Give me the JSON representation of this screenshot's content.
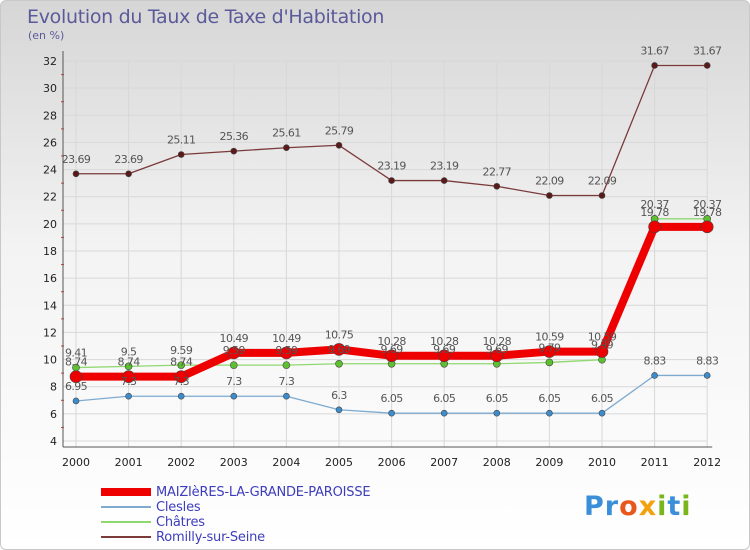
{
  "title": "Evolution du Taux de Taxe d'Habitation",
  "subtitle": "(en %)",
  "logo": {
    "text": "Proxiti",
    "letters": [
      "P",
      "r",
      "o",
      "x",
      "i",
      "t",
      "i"
    ],
    "colors": [
      "#3b8fd9",
      "#3b8fd9",
      "#e8571b",
      "#f2a20c",
      "#79b51c",
      "#3b8fd9",
      "#79b51c"
    ]
  },
  "chart_data": {
    "type": "line",
    "title": "Evolution du Taux de Taxe d'Habitation",
    "ylabel": "(en %)",
    "xlabel": "",
    "ylim": [
      4,
      32
    ],
    "yticks": [
      4,
      6,
      8,
      10,
      12,
      14,
      16,
      18,
      20,
      22,
      24,
      26,
      28,
      30,
      32
    ],
    "x": [
      "2000",
      "2001",
      "2002",
      "2003",
      "2004",
      "2005",
      "2006",
      "2007",
      "2008",
      "2009",
      "2010",
      "2011",
      "2012"
    ],
    "grid": true,
    "series": [
      {
        "name": "Romilly-sur-Seine",
        "color": "#7a3a3a",
        "marker": "#5a1a1a",
        "width": 1.3,
        "r": 3,
        "values": [
          23.69,
          23.69,
          25.11,
          25.36,
          25.61,
          25.79,
          23.19,
          23.19,
          22.77,
          22.09,
          22.09,
          31.67,
          31.67
        ],
        "labels": [
          "23.69",
          "23.69",
          "25.11",
          "25.36",
          "25.61",
          "25.79",
          "23.19",
          "23.19",
          "22.77",
          "22.09",
          "22.09",
          "31.67",
          "31.67"
        ]
      },
      {
        "name": "Châtres",
        "color": "#90d870",
        "marker": "#5cc030",
        "width": 1.3,
        "r": 3.5,
        "values": [
          9.41,
          9.5,
          9.59,
          9.59,
          9.59,
          9.69,
          9.69,
          9.69,
          9.69,
          9.79,
          9.99,
          20.37,
          20.37
        ],
        "labels": [
          "9.41",
          "9.5",
          "9.59",
          "9.59",
          "9.59",
          "9.69",
          "9.69",
          "9.69",
          "9.69",
          "9.79",
          "9.99",
          "20.37",
          "20.37"
        ]
      },
      {
        "name": "Clesles",
        "color": "#7eaad0",
        "marker": "#3d8ccc",
        "width": 1.3,
        "r": 3,
        "values": [
          6.95,
          7.3,
          7.3,
          7.3,
          7.3,
          6.3,
          6.05,
          6.05,
          6.05,
          6.05,
          6.05,
          8.83,
          8.83
        ],
        "labels": [
          "6.95",
          "7.3",
          "7.3",
          "7.3",
          "7.3",
          "6.3",
          "6.05",
          "6.05",
          "6.05",
          "6.05",
          "6.05",
          "8.83",
          "8.83"
        ]
      },
      {
        "name": "MAIZIèRES-LA-GRANDE-PAROISSE",
        "color": "#ee0000",
        "marker": "#ee0000",
        "width": 8,
        "r": 6,
        "values": [
          8.74,
          8.74,
          8.74,
          10.49,
          10.49,
          10.75,
          10.28,
          10.28,
          10.28,
          10.59,
          10.59,
          19.78,
          19.78
        ],
        "labels": [
          "8.74",
          "8.74",
          "8.74",
          "10.49",
          "10.49",
          "10.75",
          "10.28",
          "10.28",
          "10.28",
          "10.59",
          "10.59",
          "19.78",
          "19.78"
        ]
      }
    ]
  },
  "legend": [
    {
      "name": "MAIZIèRES-LA-GRANDE-PAROISSE",
      "color": "#ee0000",
      "thick": 8
    },
    {
      "name": "Clesles",
      "color": "#7eaad0",
      "thick": 2
    },
    {
      "name": "Châtres",
      "color": "#90d870",
      "thick": 2
    },
    {
      "name": "Romilly-sur-Seine",
      "color": "#7a3a3a",
      "thick": 2
    }
  ]
}
